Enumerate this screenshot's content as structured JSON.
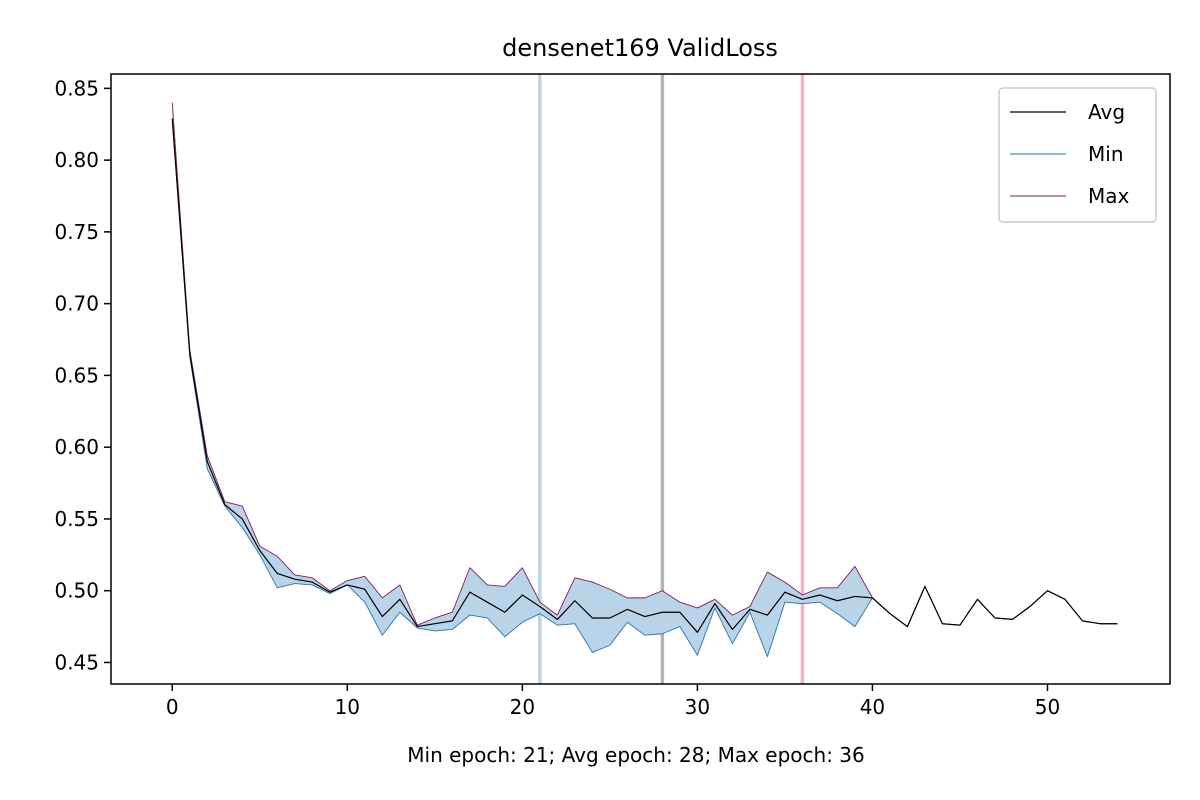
{
  "chart_data": {
    "type": "line",
    "title": "densenet169 ValidLoss",
    "xlabel": "Min epoch: 21; Avg epoch: 28; Max epoch: 36",
    "ylabel": "",
    "xlim": [
      -3.5,
      57
    ],
    "ylim": [
      0.435,
      0.86
    ],
    "x_ticks": [
      0,
      10,
      20,
      30,
      40,
      50
    ],
    "y_ticks": [
      0.45,
      0.5,
      0.55,
      0.6,
      0.65,
      0.7,
      0.75,
      0.8,
      0.85
    ],
    "x_tick_labels": [
      "0",
      "10",
      "20",
      "30",
      "40",
      "50"
    ],
    "y_tick_labels": [
      "0.45",
      "0.50",
      "0.55",
      "0.60",
      "0.65",
      "0.70",
      "0.75",
      "0.80",
      "0.85"
    ],
    "grid": false,
    "legend_position": "top-right",
    "x": [
      0,
      1,
      2,
      3,
      4,
      5,
      6,
      7,
      8,
      9,
      10,
      11,
      12,
      13,
      14,
      15,
      16,
      17,
      18,
      19,
      20,
      21,
      22,
      23,
      24,
      25,
      26,
      27,
      28,
      29,
      30,
      31,
      32,
      33,
      34,
      35,
      36,
      37,
      38,
      39,
      40,
      41,
      42,
      43,
      44,
      45,
      46,
      47,
      48,
      49,
      50,
      51,
      52,
      53,
      54
    ],
    "series": [
      {
        "name": "Avg",
        "color": "#000000",
        "values": [
          0.829,
          0.665,
          0.59,
          0.56,
          0.55,
          0.528,
          0.512,
          0.508,
          0.506,
          0.499,
          0.504,
          0.501,
          0.482,
          0.494,
          0.475,
          0.477,
          0.479,
          0.499,
          0.492,
          0.485,
          0.497,
          0.489,
          0.48,
          0.493,
          0.481,
          0.481,
          0.487,
          0.482,
          0.485,
          0.485,
          0.471,
          0.491,
          0.473,
          0.487,
          0.483,
          0.499,
          0.494,
          0.497,
          0.493,
          0.496,
          0.495,
          0.484,
          0.475,
          0.503,
          0.477,
          0.476,
          0.494,
          0.481,
          0.48,
          0.489,
          0.5,
          0.494,
          0.479,
          0.477,
          0.477
        ]
      },
      {
        "name": "Min",
        "color": "#1f77b4",
        "values": [
          0.827,
          0.663,
          0.585,
          0.559,
          0.544,
          0.525,
          0.502,
          0.505,
          0.504,
          0.498,
          0.504,
          0.492,
          0.469,
          0.485,
          0.474,
          0.472,
          0.473,
          0.483,
          0.481,
          0.468,
          0.478,
          0.484,
          0.476,
          0.477,
          0.457,
          0.462,
          0.478,
          0.469,
          0.47,
          0.475,
          0.455,
          0.488,
          0.463,
          0.485,
          0.454,
          0.492,
          0.491,
          0.492,
          0.484,
          0.475,
          0.495,
          0.484,
          0.475,
          0.503,
          0.477,
          0.476,
          0.494,
          0.481,
          0.48,
          0.489,
          0.5,
          0.494,
          0.479,
          0.477,
          0.477
        ]
      },
      {
        "name": "Max",
        "color": "#8b1a4a",
        "values": [
          0.84,
          0.668,
          0.594,
          0.562,
          0.559,
          0.531,
          0.524,
          0.511,
          0.509,
          0.5,
          0.507,
          0.51,
          0.495,
          0.504,
          0.476,
          0.481,
          0.485,
          0.516,
          0.504,
          0.503,
          0.516,
          0.492,
          0.483,
          0.509,
          0.506,
          0.501,
          0.495,
          0.495,
          0.5,
          0.492,
          0.488,
          0.494,
          0.483,
          0.489,
          0.513,
          0.506,
          0.497,
          0.502,
          0.502,
          0.517,
          0.495,
          0.484,
          0.475,
          0.503,
          0.477,
          0.476,
          0.494,
          0.481,
          0.48,
          0.489,
          0.5,
          0.494,
          0.479,
          0.477,
          0.477
        ]
      }
    ],
    "fill_between": {
      "lower": "Min",
      "upper": "Max",
      "color": "#b9d3e8"
    },
    "vlines": [
      {
        "x": 21,
        "color": "#b8d4e8"
      },
      {
        "x": 28,
        "color": "#b3b3b3"
      },
      {
        "x": 36,
        "color": "#eab6c8"
      }
    ]
  }
}
